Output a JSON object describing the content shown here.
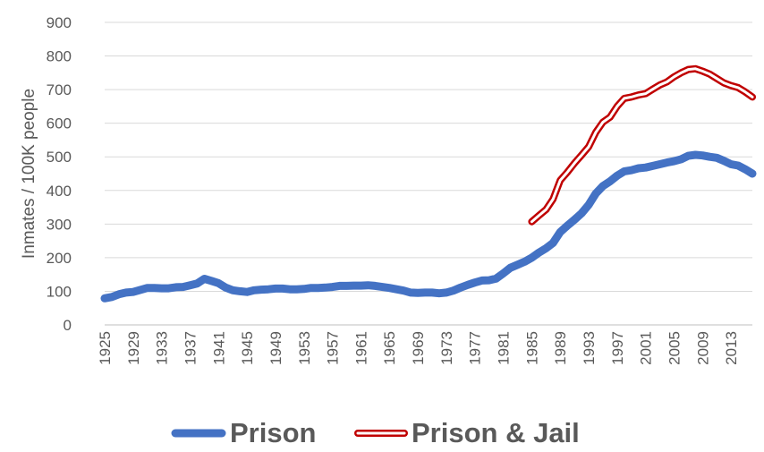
{
  "chart_data": {
    "type": "line",
    "ylabel": "Inmates / 100K people",
    "ylim": [
      0,
      900
    ],
    "yticks": [
      0,
      100,
      200,
      300,
      400,
      500,
      600,
      700,
      800,
      900
    ],
    "xlim": [
      1925,
      2016
    ],
    "xticks": [
      1925,
      1929,
      1933,
      1937,
      1941,
      1945,
      1949,
      1953,
      1957,
      1961,
      1965,
      1969,
      1973,
      1977,
      1981,
      1985,
      1989,
      1993,
      1997,
      2001,
      2005,
      2009,
      2013
    ],
    "grid": "horizontal",
    "legend_position": "bottom",
    "series": [
      {
        "name": "Prison",
        "color": "#4472C4",
        "style": "solid-thick",
        "x": [
          1925,
          1926,
          1927,
          1928,
          1929,
          1930,
          1931,
          1932,
          1933,
          1934,
          1935,
          1936,
          1937,
          1938,
          1939,
          1940,
          1941,
          1942,
          1943,
          1944,
          1945,
          1946,
          1947,
          1948,
          1949,
          1950,
          1951,
          1952,
          1953,
          1954,
          1955,
          1956,
          1957,
          1958,
          1959,
          1960,
          1961,
          1962,
          1963,
          1964,
          1965,
          1966,
          1967,
          1968,
          1969,
          1970,
          1971,
          1972,
          1973,
          1974,
          1975,
          1976,
          1977,
          1978,
          1979,
          1980,
          1981,
          1982,
          1983,
          1984,
          1985,
          1986,
          1987,
          1988,
          1989,
          1990,
          1991,
          1992,
          1993,
          1994,
          1995,
          1996,
          1997,
          1998,
          1999,
          2000,
          2001,
          2002,
          2003,
          2004,
          2005,
          2006,
          2007,
          2008,
          2009,
          2010,
          2011,
          2012,
          2013,
          2014,
          2015,
          2016
        ],
        "y": [
          79,
          83,
          91,
          96,
          98,
          104,
          110,
          110,
          109,
          109,
          112,
          113,
          118,
          123,
          137,
          131,
          124,
          111,
          103,
          100,
          98,
          103,
          105,
          106,
          108,
          108,
          106,
          106,
          107,
          110,
          110,
          111,
          113,
          116,
          116,
          117,
          117,
          118,
          116,
          113,
          110,
          106,
          102,
          96,
          95,
          96,
          96,
          94,
          96,
          102,
          111,
          119,
          126,
          132,
          133,
          138,
          153,
          170,
          179,
          188,
          200,
          215,
          228,
          244,
          276,
          295,
          313,
          332,
          357,
          391,
          413,
          427,
          444,
          457,
          460,
          466,
          468,
          473,
          478,
          483,
          487,
          493,
          503,
          506,
          504,
          500,
          497,
          488,
          478,
          474,
          463,
          450
        ]
      },
      {
        "name": "Prison & Jail",
        "color": "#C00000",
        "style": "double-outline",
        "x": [
          1985,
          1986,
          1987,
          1988,
          1989,
          1990,
          1991,
          1992,
          1993,
          1994,
          1995,
          1996,
          1997,
          1998,
          1999,
          2000,
          2001,
          2002,
          2003,
          2004,
          2005,
          2006,
          2007,
          2008,
          2009,
          2010,
          2011,
          2012,
          2013,
          2014,
          2015,
          2016
        ],
        "y": [
          307,
          325,
          343,
          374,
          430,
          454,
          481,
          505,
          530,
          573,
          603,
          618,
          650,
          674,
          678,
          684,
          688,
          701,
          714,
          723,
          738,
          750,
          760,
          762,
          755,
          746,
          733,
          720,
          712,
          706,
          693,
          678
        ]
      }
    ]
  }
}
